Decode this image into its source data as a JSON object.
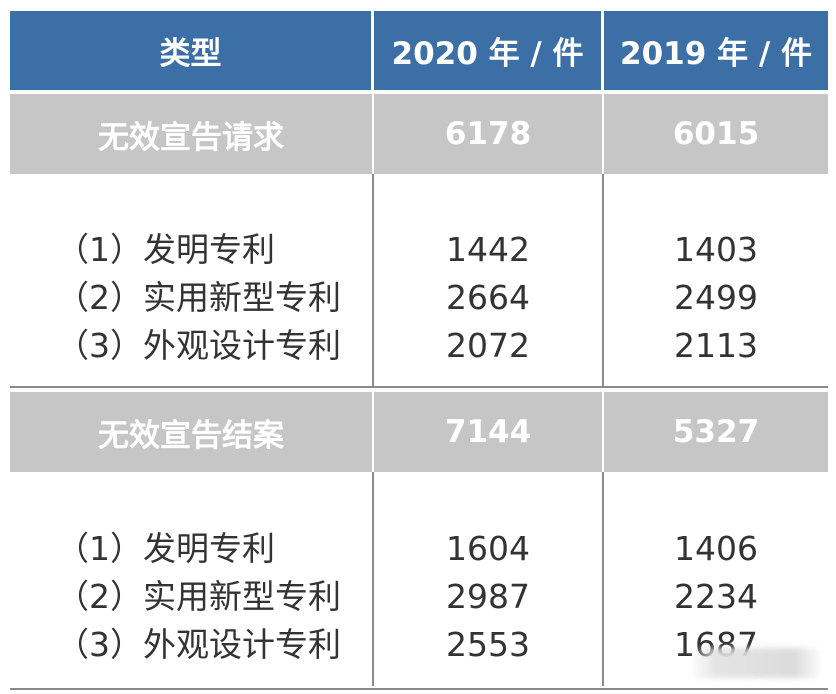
{
  "header": {
    "col_type": "类型",
    "col_2020": "2020 年 / 件",
    "col_2019": "2019 年 / 件"
  },
  "sections": [
    {
      "title": "无效宣告请求",
      "total_2020": "6178",
      "total_2019": "6015",
      "items": [
        {
          "label": "（1）发明专利",
          "v2020": "1442",
          "v2019": "1403"
        },
        {
          "label": "（2）实用新型专利",
          "v2020": "2664",
          "v2019": "2499"
        },
        {
          "label": "（3）外观设计专利",
          "v2020": "2072",
          "v2019": "2113"
        }
      ]
    },
    {
      "title": "无效宣告结案",
      "total_2020": "7144",
      "total_2019": "5327",
      "items": [
        {
          "label": "（1）发明专利",
          "v2020": "1604",
          "v2019": "1406"
        },
        {
          "label": "（2）实用新型专利",
          "v2020": "2987",
          "v2019": "2234"
        },
        {
          "label": "（3）外观设计专利",
          "v2020": "2553",
          "v2019": "1687"
        }
      ]
    }
  ],
  "colors": {
    "header_bg": "#3c6fa5",
    "summary_bg": "#c6c6c6",
    "rule": "#8a8a8a"
  }
}
